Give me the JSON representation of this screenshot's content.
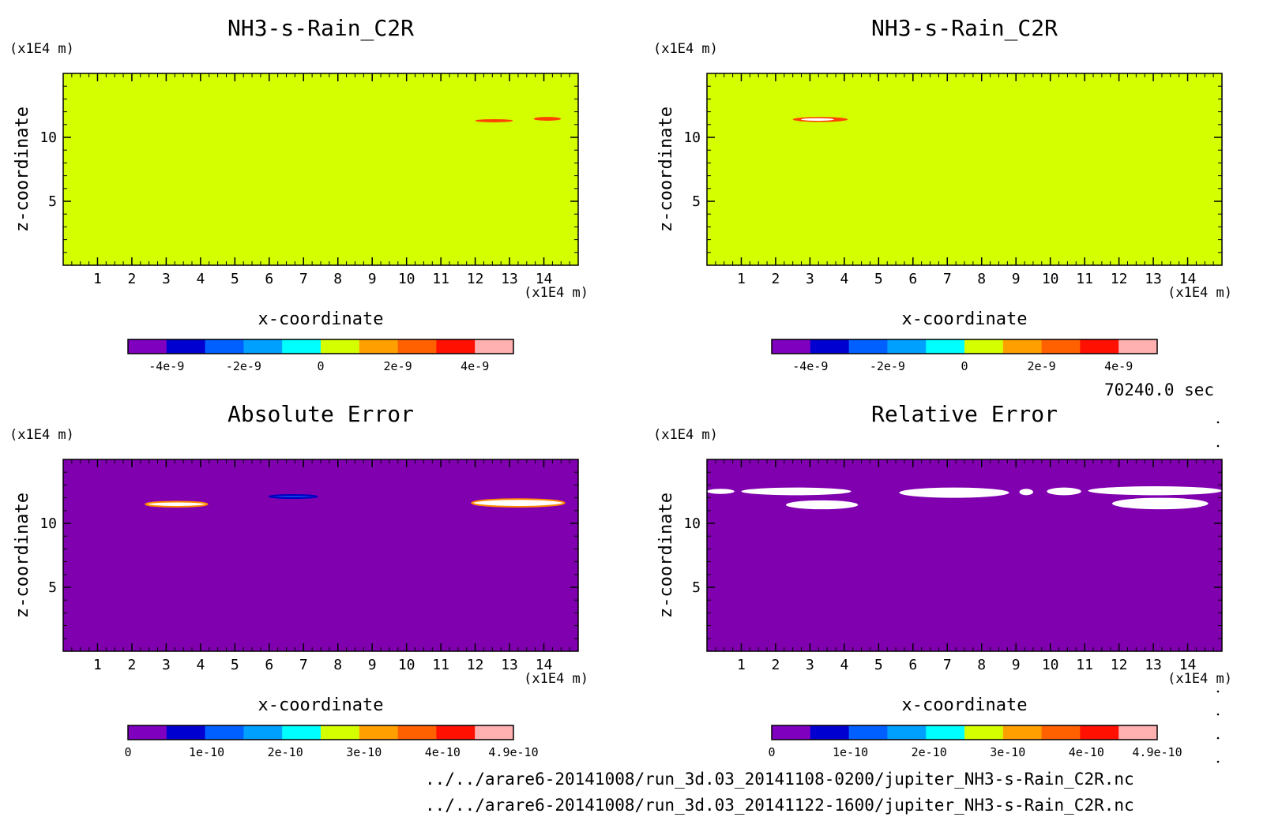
{
  "chart_data": [
    {
      "type": "heatmap",
      "title": "NH3-s-Rain_C2R",
      "xlabel": "x-coordinate",
      "ylabel": "z-coordinate",
      "x_unit": "(x1E4 m)",
      "y_unit": "(x1E4 m)",
      "xlim": [
        0,
        15
      ],
      "ylim": [
        0,
        15
      ],
      "x_ticks": [
        1,
        2,
        3,
        4,
        5,
        6,
        7,
        8,
        9,
        10,
        11,
        12,
        13,
        14
      ],
      "y_ticks": [
        5,
        10
      ],
      "background_value_color": "#d4ff00",
      "features": [
        {
          "x": [
            12.0,
            13.1
          ],
          "z": [
            11.2,
            11.4
          ],
          "color": "#ff4400"
        },
        {
          "x": [
            13.7,
            14.5
          ],
          "z": [
            11.3,
            11.6
          ],
          "color": "#ff4400"
        }
      ],
      "colorbar": {
        "colors": [
          "#8000c0",
          "#0000d0",
          "#0060ff",
          "#00a0ff",
          "#00ffff",
          "#d4ff00",
          "#ffa000",
          "#ff6000",
          "#ff1000",
          "#ffb0b0"
        ],
        "tick_labels": [
          "-4e-9",
          "-2e-9",
          "0",
          "2e-9",
          "4e-9"
        ]
      }
    },
    {
      "type": "heatmap",
      "title": "NH3-s-Rain_C2R",
      "xlabel": "x-coordinate",
      "ylabel": "z-coordinate",
      "x_unit": "(x1E4 m)",
      "y_unit": "(x1E4 m)",
      "xlim": [
        0,
        15
      ],
      "ylim": [
        0,
        15
      ],
      "x_ticks": [
        1,
        2,
        3,
        4,
        5,
        6,
        7,
        8,
        9,
        10,
        11,
        12,
        13,
        14
      ],
      "y_ticks": [
        5,
        10
      ],
      "background_value_color": "#d4ff00",
      "features": [
        {
          "x": [
            2.5,
            4.1
          ],
          "z": [
            11.2,
            11.6
          ],
          "color": "#ff4400",
          "core": "#ffffff"
        }
      ],
      "colorbar": {
        "colors": [
          "#8000c0",
          "#0000d0",
          "#0060ff",
          "#00a0ff",
          "#00ffff",
          "#d4ff00",
          "#ffa000",
          "#ff6000",
          "#ff1000",
          "#ffb0b0"
        ],
        "tick_labels": [
          "-4e-9",
          "-2e-9",
          "0",
          "2e-9",
          "4e-9"
        ]
      }
    },
    {
      "type": "heatmap",
      "title": "Absolute Error",
      "xlabel": "x-coordinate",
      "ylabel": "z-coordinate",
      "x_unit": "(x1E4 m)",
      "y_unit": "(x1E4 m)",
      "xlim": [
        0,
        15
      ],
      "ylim": [
        0,
        15
      ],
      "x_ticks": [
        1,
        2,
        3,
        4,
        5,
        6,
        7,
        8,
        9,
        10,
        11,
        12,
        13,
        14
      ],
      "y_ticks": [
        5,
        10
      ],
      "background_value_color": "#8000b0",
      "features": [
        {
          "x": [
            2.4,
            4.2
          ],
          "z": [
            11.3,
            11.7
          ],
          "color": "#ffffff",
          "edge": "#ff8800"
        },
        {
          "x": [
            6.0,
            7.4
          ],
          "z": [
            12.0,
            12.2
          ],
          "color": "#1040e0",
          "edge": "#0000c0"
        },
        {
          "x": [
            11.9,
            14.6
          ],
          "z": [
            11.3,
            11.9
          ],
          "color": "#ffffff",
          "edge": "#ff8800"
        }
      ],
      "colorbar": {
        "colors": [
          "#8000c0",
          "#0000d0",
          "#0060ff",
          "#00a0ff",
          "#00ffff",
          "#d4ff00",
          "#ffa000",
          "#ff6000",
          "#ff1000",
          "#ffb0b0"
        ],
        "tick_labels": [
          "0",
          "1e-10",
          "2e-10",
          "3e-10",
          "4e-10",
          "4.9e-10"
        ],
        "tick_values": [
          0,
          1,
          2,
          3,
          4,
          4.9
        ],
        "vmax": 4.9
      }
    },
    {
      "type": "heatmap",
      "title": "Relative Error",
      "xlabel": "x-coordinate",
      "ylabel": "z-coordinate",
      "x_unit": "(x1E4 m)",
      "y_unit": "(x1E4 m)",
      "xlim": [
        0,
        15
      ],
      "ylim": [
        0,
        15
      ],
      "x_ticks": [
        1,
        2,
        3,
        4,
        5,
        6,
        7,
        8,
        9,
        10,
        11,
        12,
        13,
        14
      ],
      "y_ticks": [
        5,
        10
      ],
      "background_value_color": "#8000b0",
      "features": [
        {
          "x": [
            0.0,
            0.8
          ],
          "z": [
            12.3,
            12.7
          ],
          "color": "#ffffff"
        },
        {
          "x": [
            1.0,
            4.2
          ],
          "z": [
            12.2,
            12.8
          ],
          "color": "#ffffff"
        },
        {
          "x": [
            2.3,
            4.4
          ],
          "z": [
            11.1,
            11.8
          ],
          "color": "#ffffff"
        },
        {
          "x": [
            5.6,
            8.8
          ],
          "z": [
            12.0,
            12.8
          ],
          "color": "#ffffff"
        },
        {
          "x": [
            9.1,
            9.5
          ],
          "z": [
            12.2,
            12.7
          ],
          "color": "#ffffff"
        },
        {
          "x": [
            9.9,
            10.9
          ],
          "z": [
            12.2,
            12.8
          ],
          "color": "#ffffff"
        },
        {
          "x": [
            11.1,
            15.0
          ],
          "z": [
            12.2,
            12.9
          ],
          "color": "#ffffff"
        },
        {
          "x": [
            11.8,
            14.6
          ],
          "z": [
            11.1,
            12.0
          ],
          "color": "#ffffff"
        }
      ],
      "colorbar": {
        "colors": [
          "#8000c0",
          "#0000d0",
          "#0060ff",
          "#00a0ff",
          "#00ffff",
          "#d4ff00",
          "#ffa000",
          "#ff6000",
          "#ff1000",
          "#ffb0b0"
        ],
        "tick_labels": [
          "0",
          "1e-10",
          "2e-10",
          "3e-10",
          "4e-10",
          "4.9e-10"
        ],
        "tick_values": [
          0,
          1,
          2,
          3,
          4,
          4.9
        ],
        "vmax": 4.9
      }
    }
  ],
  "time_label": "70240.0 sec",
  "file_paths": [
    "../../arare6-20141008/run_3d.03_20141108-0200/jupiter_NH3-s-Rain_C2R.nc",
    "../../arare6-20141008/run_3d.03_20141122-1600/jupiter_NH3-s-Rain_C2R.nc"
  ]
}
